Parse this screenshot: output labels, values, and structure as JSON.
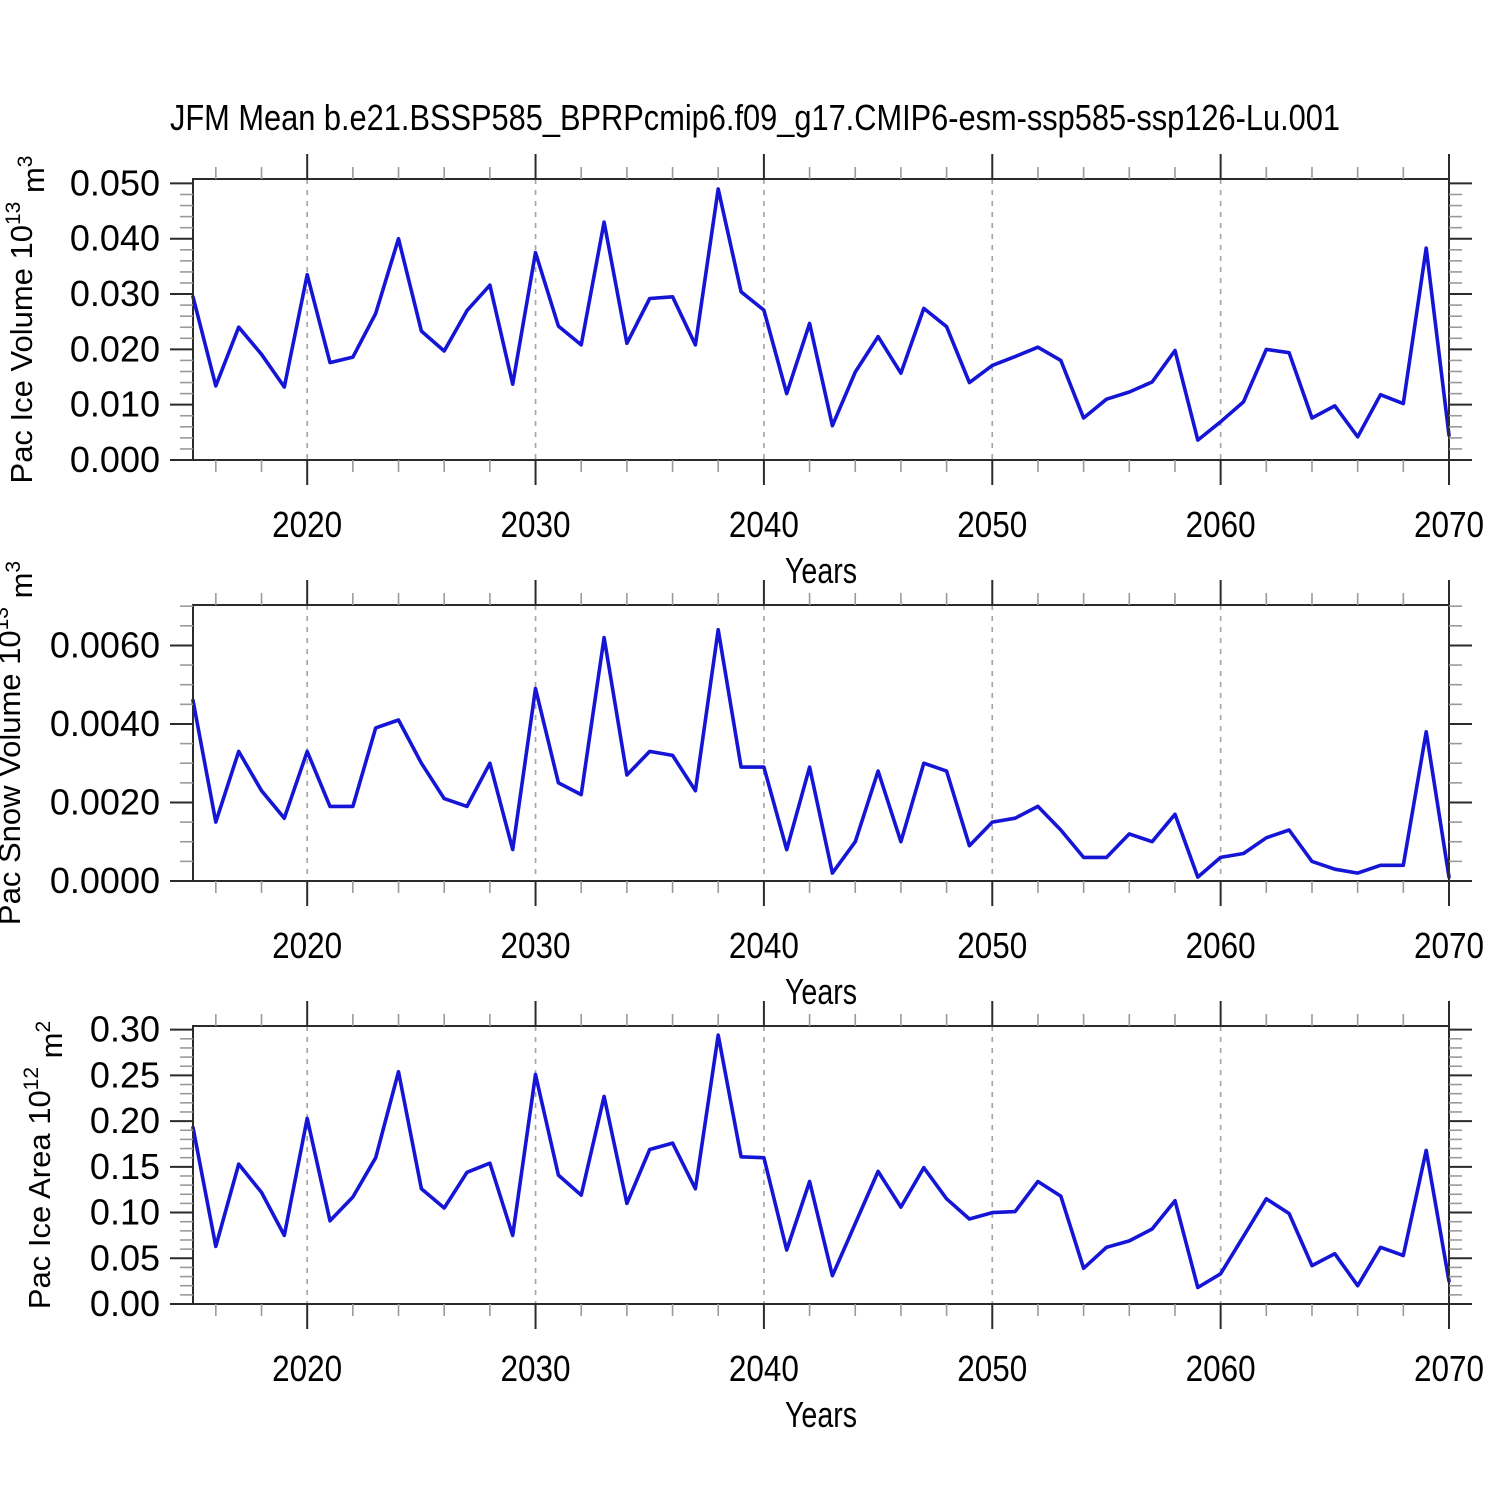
{
  "title": "JFM Mean b.e21.BSSP585_BPRPcmip6.f09_g17.CMIP6-esm-ssp585-ssp126-Lu.001",
  "colors": {
    "line": "#1515d6",
    "frame": "#2b2b2b",
    "major_tick": "#2b2b2b",
    "minor_tick": "#9a9a9a",
    "gridline": "#a6a6a6",
    "text": "#000000"
  },
  "chart_data": [
    {
      "id": "pac-ice-volume",
      "type": "line",
      "ylabel_parts": [
        {
          "t": "Pac Ice Volume 10"
        },
        {
          "t": "13",
          "sup": true
        },
        {
          "t": " m"
        },
        {
          "t": "3",
          "sup": true
        }
      ],
      "xlabel": "Years",
      "x_start": 2015,
      "x_end": 2070,
      "x_major_ticks": [
        2020,
        2030,
        2040,
        2050,
        2060,
        2070
      ],
      "x_tick_labels": [
        "2020",
        "2030",
        "2040",
        "2050",
        "2060",
        "2070"
      ],
      "x_minor_step": 2,
      "grid_years": [
        2020,
        2030,
        2040,
        2050,
        2060
      ],
      "ylim": [
        0,
        0.0508
      ],
      "y_frame_max": 0.0508,
      "y_major_ticks": [
        0.0,
        0.01,
        0.02,
        0.03,
        0.04,
        0.05
      ],
      "y_tick_labels": [
        "0.000",
        "0.010",
        "0.020",
        "0.030",
        "0.040",
        "0.050"
      ],
      "y_minor_step": 0.002,
      "values": [
        0.0295,
        0.0134,
        0.024,
        0.0191,
        0.0132,
        0.0335,
        0.0176,
        0.0186,
        0.0265,
        0.04,
        0.0233,
        0.0197,
        0.027,
        0.0316,
        0.0137,
        0.0375,
        0.0242,
        0.0208,
        0.043,
        0.0211,
        0.0292,
        0.0295,
        0.0208,
        0.049,
        0.0304,
        0.0271,
        0.012,
        0.0247,
        0.0062,
        0.0159,
        0.0223,
        0.0157,
        0.0274,
        0.0241,
        0.014,
        0.0171,
        0.0187,
        0.0204,
        0.018,
        0.0076,
        0.011,
        0.0123,
        0.0141,
        0.0198,
        0.0036,
        0.0069,
        0.0105,
        0.02,
        0.0194,
        0.0076,
        0.0098,
        0.0042,
        0.0118,
        0.0102,
        0.0383,
        0.0045
      ]
    },
    {
      "id": "pac-snow-volume",
      "type": "line",
      "ylabel_parts": [
        {
          "t": "Pac Snow Volume 10"
        },
        {
          "t": "13",
          "sup": true
        },
        {
          "t": " m"
        },
        {
          "t": "3",
          "sup": true
        }
      ],
      "xlabel": "Years",
      "x_start": 2015,
      "x_end": 2070,
      "x_major_ticks": [
        2020,
        2030,
        2040,
        2050,
        2060,
        2070
      ],
      "x_tick_labels": [
        "2020",
        "2030",
        "2040",
        "2050",
        "2060",
        "2070"
      ],
      "x_minor_step": 2,
      "grid_years": [
        2020,
        2030,
        2040,
        2050,
        2060
      ],
      "ylim": [
        0,
        0.00703
      ],
      "y_frame_max": 0.00703,
      "y_major_ticks": [
        0.0,
        0.002,
        0.004,
        0.006
      ],
      "y_tick_labels": [
        "0.0000",
        "0.0020",
        "0.0040",
        "0.0060"
      ],
      "y_minor_step": 0.0005,
      "values": [
        0.0046,
        0.0015,
        0.0033,
        0.0023,
        0.0016,
        0.0033,
        0.0019,
        0.0019,
        0.0039,
        0.0041,
        0.003,
        0.0021,
        0.0019,
        0.003,
        0.0008,
        0.0049,
        0.0025,
        0.0022,
        0.0062,
        0.0027,
        0.0033,
        0.0032,
        0.0023,
        0.0064,
        0.0029,
        0.0029,
        0.0008,
        0.0029,
        0.0002,
        0.001,
        0.0028,
        0.001,
        0.003,
        0.0028,
        0.0009,
        0.0015,
        0.0016,
        0.0019,
        0.0013,
        0.0006,
        0.0006,
        0.0012,
        0.001,
        0.0017,
        0.0001,
        0.0006,
        0.0007,
        0.0011,
        0.0013,
        0.0005,
        0.0003,
        0.0002,
        0.0004,
        0.0004,
        0.0038,
        0.0001
      ]
    },
    {
      "id": "pac-ice-area",
      "type": "line",
      "ylabel_parts": [
        {
          "t": "Pac Ice Area 10"
        },
        {
          "t": "12",
          "sup": true
        },
        {
          "t": " m"
        },
        {
          "t": "2",
          "sup": true
        }
      ],
      "xlabel": "Years",
      "x_start": 2015,
      "x_end": 2070,
      "x_major_ticks": [
        2020,
        2030,
        2040,
        2050,
        2060,
        2070
      ],
      "x_tick_labels": [
        "2020",
        "2030",
        "2040",
        "2050",
        "2060",
        "2070"
      ],
      "x_minor_step": 2,
      "grid_years": [
        2020,
        2030,
        2040,
        2050,
        2060
      ],
      "ylim": [
        0,
        0.304
      ],
      "y_frame_max": 0.304,
      "y_major_ticks": [
        0.0,
        0.05,
        0.1,
        0.15,
        0.2,
        0.25,
        0.3
      ],
      "y_tick_labels": [
        "0.00",
        "0.05",
        "0.10",
        "0.15",
        "0.20",
        "0.25",
        "0.30"
      ],
      "y_minor_step": 0.01,
      "values": [
        0.193,
        0.063,
        0.153,
        0.122,
        0.075,
        0.203,
        0.091,
        0.117,
        0.16,
        0.254,
        0.126,
        0.105,
        0.144,
        0.154,
        0.075,
        0.251,
        0.141,
        0.119,
        0.227,
        0.11,
        0.169,
        0.176,
        0.126,
        0.294,
        0.161,
        0.16,
        0.059,
        0.134,
        0.031,
        0.088,
        0.145,
        0.106,
        0.149,
        0.115,
        0.093,
        0.1,
        0.101,
        0.134,
        0.118,
        0.039,
        0.062,
        0.069,
        0.082,
        0.113,
        0.018,
        0.033,
        0.074,
        0.115,
        0.099,
        0.042,
        0.055,
        0.02,
        0.062,
        0.053,
        0.168,
        0.025
      ]
    }
  ]
}
